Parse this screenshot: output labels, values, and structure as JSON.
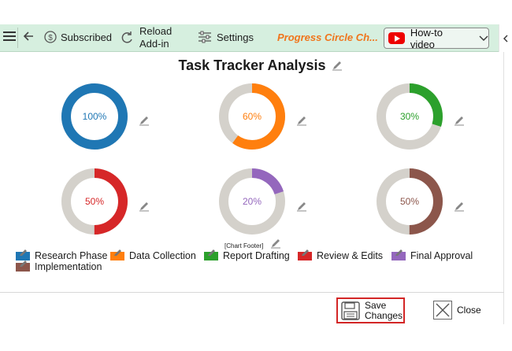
{
  "toolbar": {
    "subscribed_label": "Subscribed",
    "reload_label_line1": "Reload",
    "reload_label_line2": "Add-in",
    "settings_label": "Settings",
    "app_title": "Progress Circle Ch...",
    "howto_label": "How-to video"
  },
  "chart_data": {
    "type": "donut",
    "title": "Task Tracker Analysis",
    "footer": "[Chart Footer]",
    "track_color": "#d4d1cb",
    "series": [
      {
        "name": "Research Phase",
        "value": 100,
        "label": "100%",
        "color": "#1f77b4"
      },
      {
        "name": "Data Collection",
        "value": 60,
        "label": "60%",
        "color": "#ff7f0e"
      },
      {
        "name": "Report Drafting",
        "value": 30,
        "label": "30%",
        "color": "#2ca02c"
      },
      {
        "name": "Review & Edits",
        "value": 50,
        "label": "50%",
        "color": "#d62728"
      },
      {
        "name": "Final Approval",
        "value": 20,
        "label": "20%",
        "color": "#9467bd"
      },
      {
        "name": "Implementation",
        "value": 50,
        "label": "50%",
        "color": "#8c564b"
      }
    ]
  },
  "footer_buttons": {
    "save_line1": "Save",
    "save_line2": "Changes",
    "close_label": "Close"
  }
}
